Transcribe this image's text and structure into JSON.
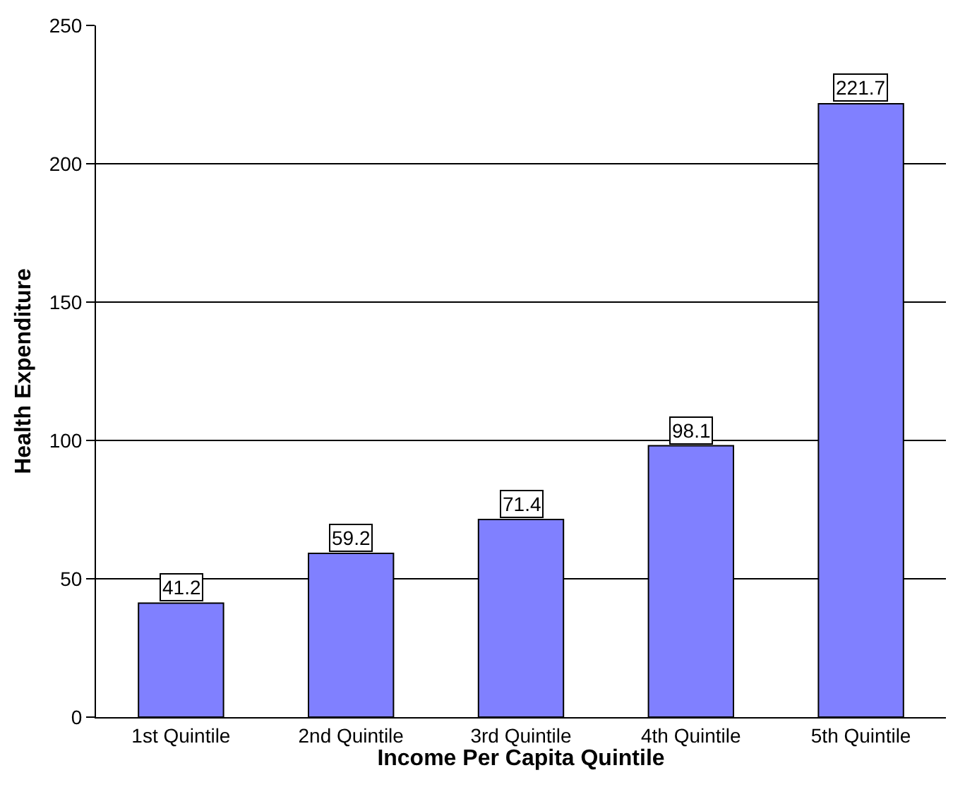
{
  "chart_data": {
    "type": "bar",
    "xlabel": "Income Per Capita Quintile",
    "ylabel": "Health Expenditure",
    "categories": [
      "1st Quintile",
      "2nd Quintile",
      "3rd Quintile",
      "4th Quintile",
      "5th Quintile"
    ],
    "values": [
      41.2,
      59.2,
      71.4,
      98.1,
      221.7
    ],
    "color": "#8080ff",
    "ylim": [
      0,
      250
    ],
    "yticks": [
      0,
      50,
      100,
      150,
      200,
      250
    ],
    "grid": "y",
    "data_labels": true
  }
}
